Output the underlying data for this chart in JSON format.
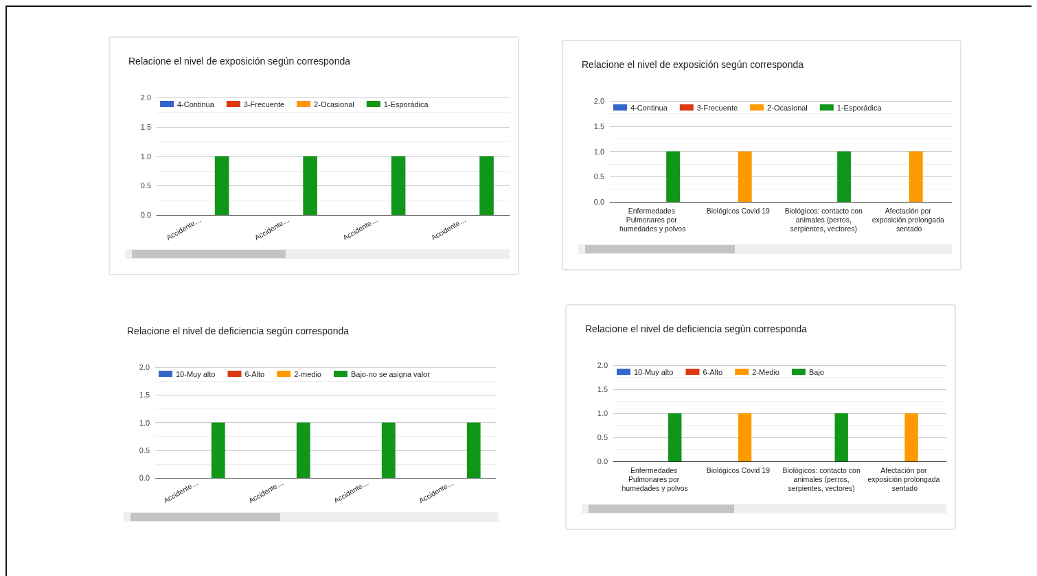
{
  "chart_data": [
    {
      "type": "bar",
      "title": "Relacione el nivel de exposición según corresponda",
      "categories": [
        "Accidente…",
        "Accidente…",
        "Accidente…",
        "Accidente…"
      ],
      "series": [
        {
          "name": "4-Continua",
          "color": "#3366cc",
          "values": [
            0,
            0,
            0,
            0
          ]
        },
        {
          "name": "3-Frecuente",
          "color": "#dc3912",
          "values": [
            0,
            0,
            0,
            0
          ]
        },
        {
          "name": "2-Ocasional",
          "color": "#ff9900",
          "values": [
            0,
            0,
            0,
            0
          ]
        },
        {
          "name": "1-Esporádica",
          "color": "#109618",
          "values": [
            1,
            1,
            1,
            1
          ]
        }
      ],
      "ylim": [
        0,
        2
      ],
      "yticks": [
        {
          "value": 0,
          "label": "0.0"
        },
        {
          "value": 0.5,
          "label": "0.5"
        },
        {
          "value": 1,
          "label": "1.0"
        },
        {
          "value": 1.5,
          "label": "1.5"
        },
        {
          "value": 2,
          "label": "2.0"
        }
      ],
      "grid": "y",
      "legend": "top left"
    },
    {
      "type": "bar",
      "title": "Relacione el nivel de exposición según corresponda",
      "categories": [
        "Enfermedades Pulmonares por humedades y polvos",
        "Biológicos Covid 19",
        "Biológicos: contacto con animales (perros, serpientes, vectores)",
        "Afectación por exposición prolongada sentado"
      ],
      "series": [
        {
          "name": "4-Continua",
          "color": "#3366cc",
          "values": [
            0,
            0,
            0,
            0
          ]
        },
        {
          "name": "3-Frecuente",
          "color": "#dc3912",
          "values": [
            0,
            0,
            0,
            0
          ]
        },
        {
          "name": "2-Ocasional",
          "color": "#ff9900",
          "values": [
            0,
            1,
            0,
            1
          ]
        },
        {
          "name": "1-Esporádica",
          "color": "#109618",
          "values": [
            1,
            0,
            1,
            0
          ]
        }
      ],
      "ylim": [
        0,
        2
      ],
      "yticks": [
        {
          "value": 0,
          "label": "0.0"
        },
        {
          "value": 0.5,
          "label": "0.5"
        },
        {
          "value": 1,
          "label": "1.0"
        },
        {
          "value": 1.5,
          "label": "1.5"
        },
        {
          "value": 2,
          "label": "2.0"
        }
      ],
      "grid": "y",
      "legend": "top left"
    },
    {
      "type": "bar",
      "title": "Relacione el nivel de deficiencia según corresponda",
      "categories": [
        "Accidente…",
        "Accidente…",
        "Accidente…",
        "Accidente…"
      ],
      "series": [
        {
          "name": "10-Muy alto",
          "color": "#3366cc",
          "values": [
            0,
            0,
            0,
            0
          ]
        },
        {
          "name": "6-Alto",
          "color": "#dc3912",
          "values": [
            0,
            0,
            0,
            0
          ]
        },
        {
          "name": "2-medio",
          "color": "#ff9900",
          "values": [
            0,
            0,
            0,
            0
          ]
        },
        {
          "name": "Bajo-no se asigna valor",
          "color": "#109618",
          "values": [
            1,
            1,
            1,
            1
          ]
        }
      ],
      "ylim": [
        0,
        2
      ],
      "yticks": [
        {
          "value": 0,
          "label": "0.0"
        },
        {
          "value": 0.5,
          "label": "0.5"
        },
        {
          "value": 1,
          "label": "1.0"
        },
        {
          "value": 1.5,
          "label": "1.5"
        },
        {
          "value": 2,
          "label": "2.0"
        }
      ],
      "grid": "y",
      "legend": "top left"
    },
    {
      "type": "bar",
      "title": "Relacione el nivel de deficiencia según corresponda",
      "categories": [
        "Enfermedades Pulmonares por humedades y polvos",
        "Biológicos Covid 19",
        "Biológicos: contacto con animales (perros, serpientes, vectores)",
        "Afectación por exposición prolongada sentado"
      ],
      "series": [
        {
          "name": "10-Muy alto",
          "color": "#3366cc",
          "values": [
            0,
            0,
            0,
            0
          ]
        },
        {
          "name": "6-Alto",
          "color": "#dc3912",
          "values": [
            0,
            0,
            0,
            0
          ]
        },
        {
          "name": "2-Medio",
          "color": "#ff9900",
          "values": [
            0,
            1,
            0,
            1
          ]
        },
        {
          "name": "Bajo",
          "color": "#109618",
          "values": [
            1,
            0,
            1,
            0
          ]
        }
      ],
      "ylim": [
        0,
        2
      ],
      "yticks": [
        {
          "value": 0,
          "label": "0.0"
        },
        {
          "value": 0.5,
          "label": "0.5"
        },
        {
          "value": 1,
          "label": "1.0"
        },
        {
          "value": 1.5,
          "label": "1.5"
        },
        {
          "value": 2,
          "label": "2.0"
        }
      ],
      "grid": "y",
      "legend": "top left"
    }
  ]
}
